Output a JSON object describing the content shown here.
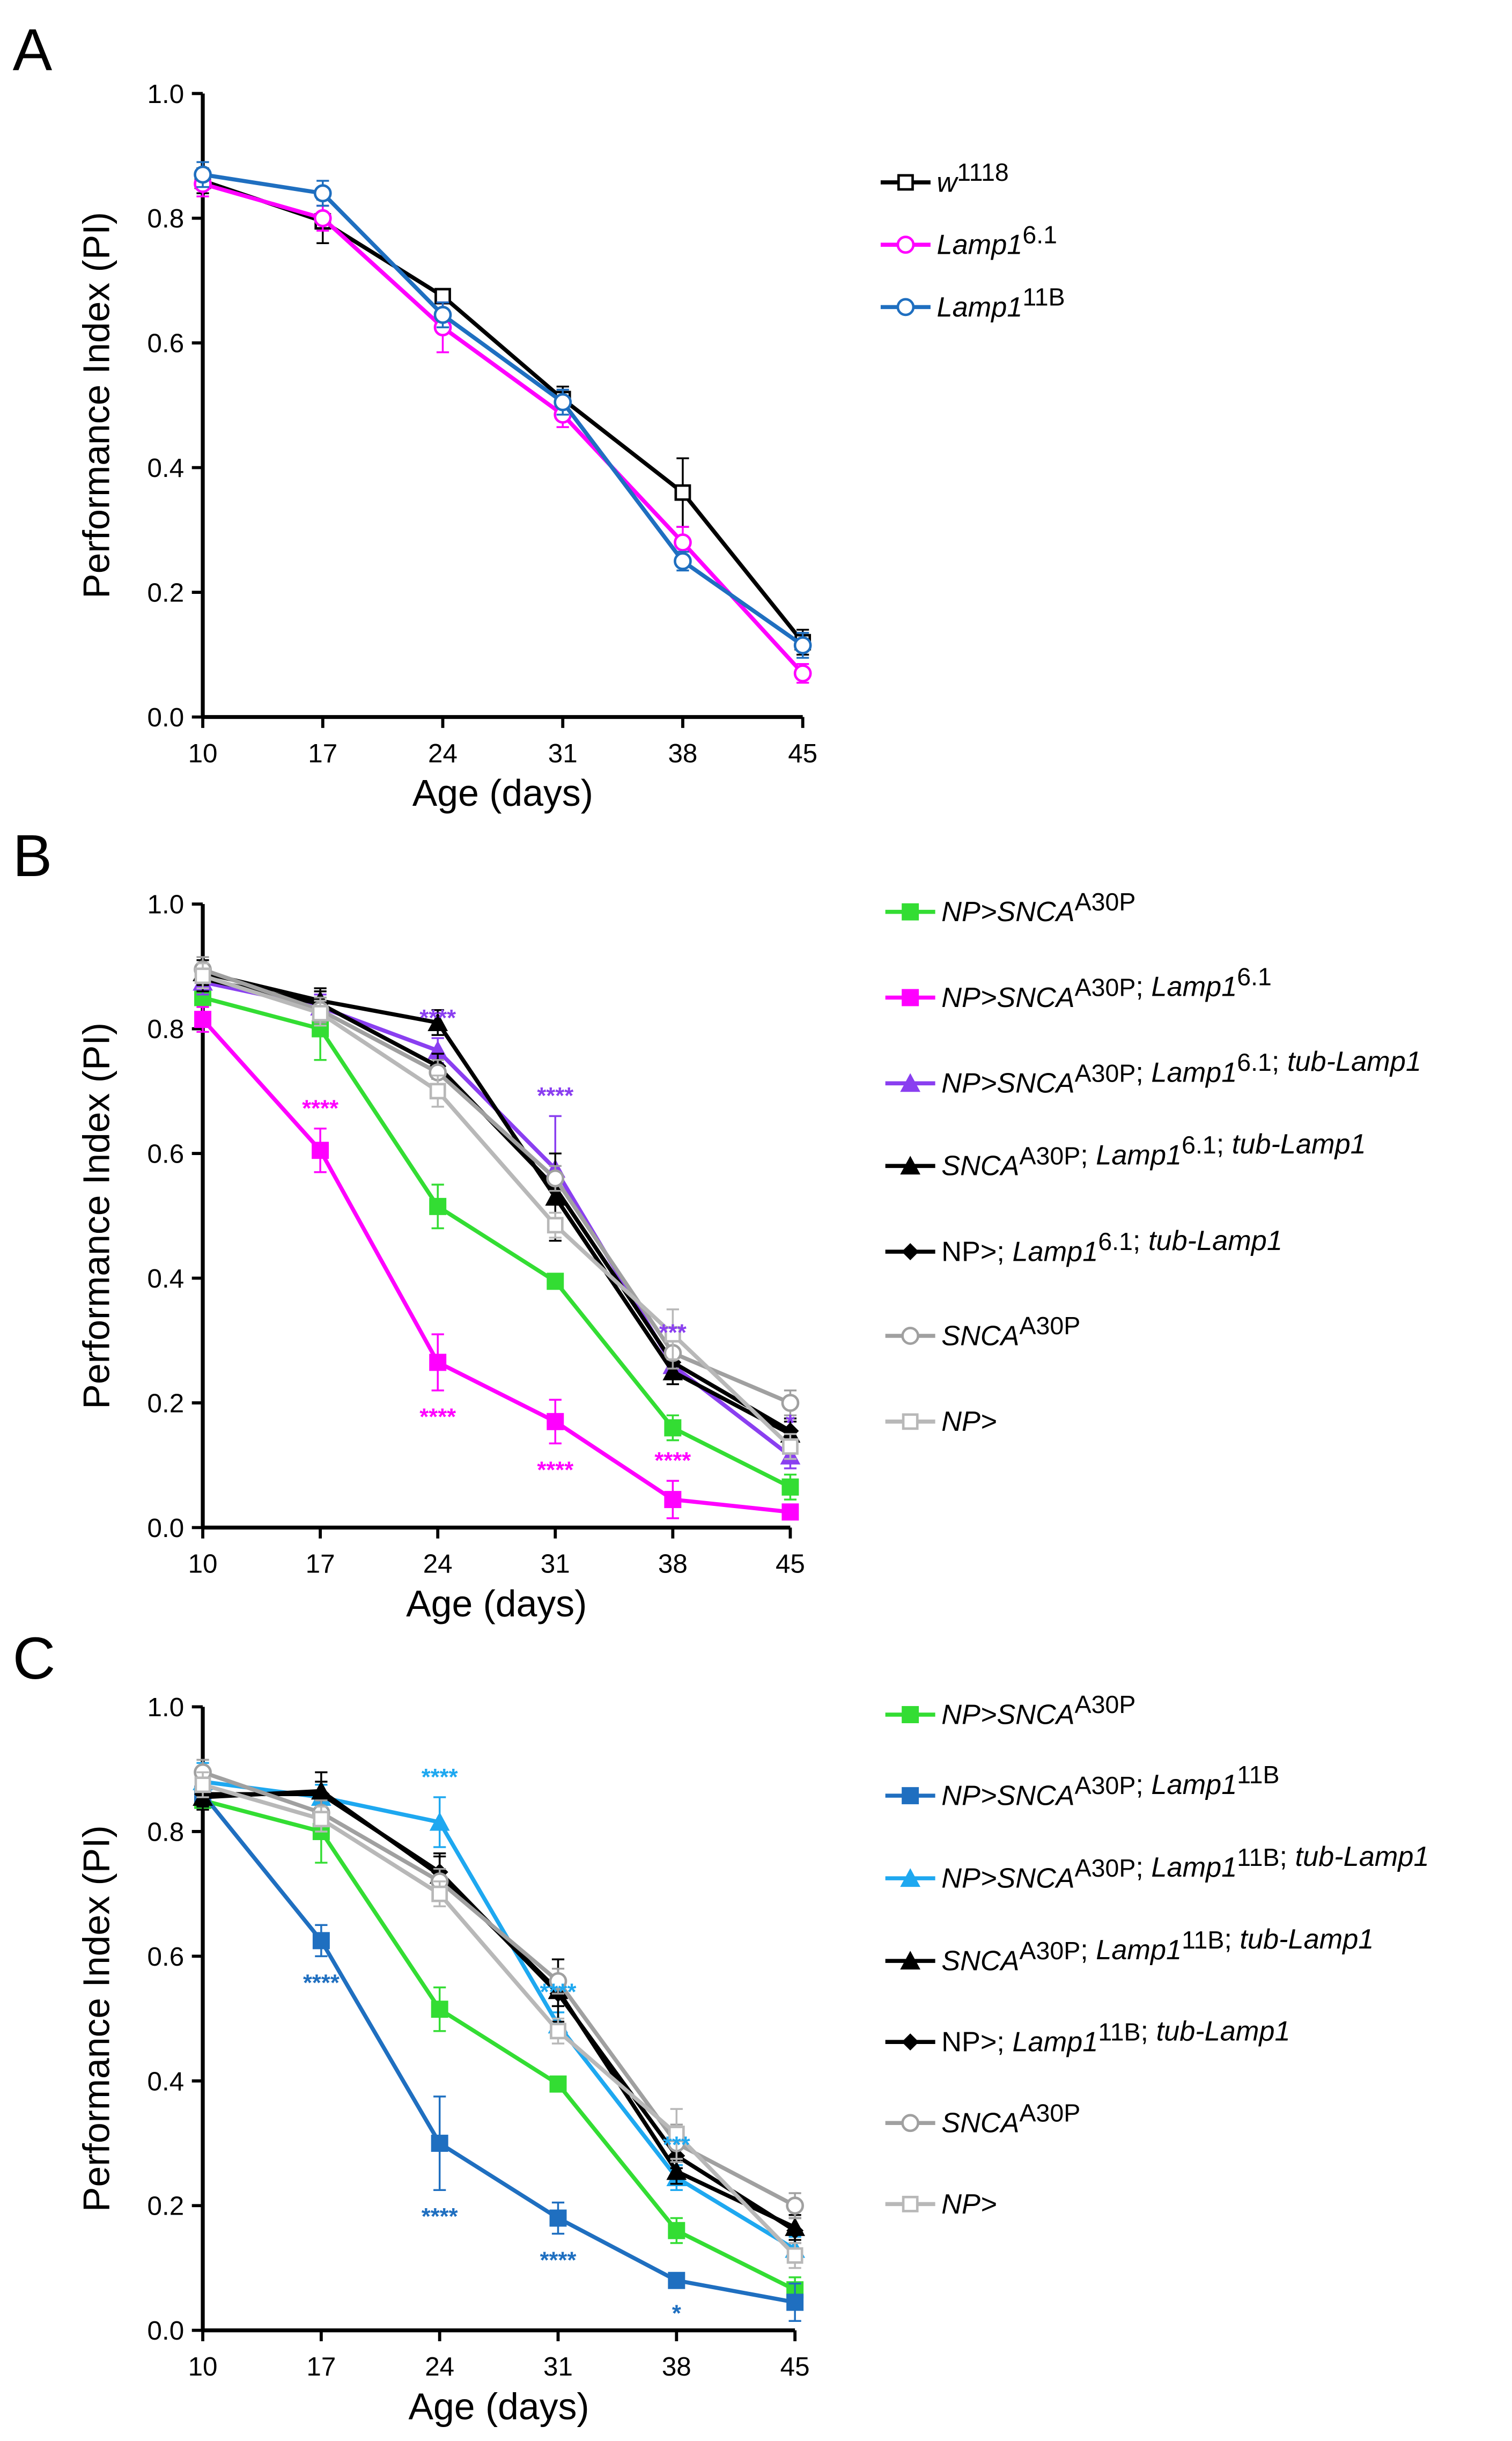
{
  "chart_data": [
    {
      "type": "line",
      "panel_label": "A",
      "xlabel": "Age (days)",
      "ylabel": "Performance Index (PI)",
      "x": [
        10,
        17,
        24,
        31,
        38,
        45
      ],
      "ylim": [
        0,
        1
      ],
      "yticks": [
        "0.0",
        "0.2",
        "0.4",
        "0.6",
        "0.8",
        "1.0"
      ],
      "legend_position": "right",
      "series": [
        {
          "label": [
            {
              "text": "w",
              "italic": true
            },
            {
              "text": "1118",
              "sup": true
            }
          ],
          "color": "#000000",
          "marker": "square-open",
          "values": [
            0.86,
            0.795,
            0.675,
            0.51,
            0.36,
            0.12
          ],
          "err": [
            0.02,
            0.035,
            0.01,
            0.02,
            0.055,
            0.02
          ]
        },
        {
          "label": [
            {
              "text": "Lamp1",
              "italic": true
            },
            {
              "text": "6.1",
              "sup": true
            }
          ],
          "color": "#ff00ff",
          "marker": "circle-open",
          "values": [
            0.855,
            0.8,
            0.625,
            0.485,
            0.28,
            0.07
          ],
          "err": [
            0.02,
            0.02,
            0.04,
            0.02,
            0.025,
            0.015
          ]
        },
        {
          "label": [
            {
              "text": "Lamp1",
              "italic": true
            },
            {
              "text": "11B",
              "sup": true
            }
          ],
          "color": "#1f6fc0",
          "marker": "circle-open",
          "values": [
            0.87,
            0.84,
            0.645,
            0.505,
            0.25,
            0.115
          ],
          "err": [
            0.02,
            0.02,
            0.02,
            0.02,
            0.015,
            0.02
          ]
        }
      ],
      "annotations": []
    },
    {
      "type": "line",
      "panel_label": "B",
      "xlabel": "Age (days)",
      "ylabel": "Performance Index (PI)",
      "x": [
        10,
        17,
        24,
        31,
        38,
        45
      ],
      "ylim": [
        0,
        1
      ],
      "yticks": [
        "0.0",
        "0.2",
        "0.4",
        "0.6",
        "0.8",
        "1.0"
      ],
      "legend_position": "right",
      "series": [
        {
          "label": [
            {
              "text": "NP>SNCA",
              "italic": true
            },
            {
              "text": "A30P",
              "sup": true
            }
          ],
          "color": "#33dd33",
          "marker": "square",
          "values": [
            0.85,
            0.8,
            0.515,
            0.395,
            0.16,
            0.065
          ],
          "err": [
            0.01,
            0.05,
            0.035,
            0.01,
            0.02,
            0.02
          ]
        },
        {
          "label": [
            {
              "text": "NP>SNCA",
              "italic": true
            },
            {
              "text": "A30P",
              "sup": true
            },
            {
              "text": "; "
            },
            {
              "text": "Lamp1",
              "italic": true
            },
            {
              "text": "6.1",
              "sup": true
            }
          ],
          "color": "#ff00ff",
          "marker": "square",
          "values": [
            0.815,
            0.605,
            0.265,
            0.17,
            0.045,
            0.025
          ],
          "err": [
            0.02,
            0.035,
            0.045,
            0.035,
            0.03,
            0.01
          ]
        },
        {
          "label": [
            {
              "text": "NP>SNCA",
              "italic": true
            },
            {
              "text": "A30P",
              "sup": true
            },
            {
              "text": "; "
            },
            {
              "text": "Lamp1",
              "italic": true
            },
            {
              "text": "6.1",
              "sup": true
            },
            {
              "text": "; "
            },
            {
              "text": "tub-Lamp1",
              "italic": true
            }
          ],
          "color": "#8a3ff0",
          "marker": "triangle",
          "values": [
            0.875,
            0.835,
            0.765,
            0.575,
            0.26,
            0.115
          ],
          "err": [
            0.02,
            0.02,
            0.02,
            0.085,
            0.02,
            0.02
          ]
        },
        {
          "label": [
            {
              "text": "SNCA",
              "italic": true
            },
            {
              "text": "A30P",
              "sup": true
            },
            {
              "text": "; "
            },
            {
              "text": "Lamp1",
              "italic": true
            },
            {
              "text": "6.1",
              "sup": true
            },
            {
              "text": "; "
            },
            {
              "text": "tub-Lamp1",
              "italic": true
            }
          ],
          "color": "#000000",
          "marker": "triangle",
          "values": [
            0.89,
            0.845,
            0.81,
            0.53,
            0.25,
            0.15
          ],
          "err": [
            0.02,
            0.02,
            0.02,
            0.07,
            0.02,
            0.02
          ]
        },
        {
          "label": [
            {
              "text": "NP>; "
            },
            {
              "text": "Lamp1",
              "italic": true
            },
            {
              "text": "6.1",
              "sup": true
            },
            {
              "text": "; "
            },
            {
              "text": "tub-Lamp1",
              "italic": true
            }
          ],
          "color": "#000000",
          "marker": "diamond",
          "values": [
            0.88,
            0.84,
            0.74,
            0.545,
            0.265,
            0.155
          ],
          "err": [
            0.02,
            0.02,
            0.02,
            0.02,
            0.02,
            0.02
          ]
        },
        {
          "label": [
            {
              "text": "SNCA",
              "italic": true
            },
            {
              "text": "A30P",
              "sup": true
            }
          ],
          "color": "#a0a0a0",
          "marker": "circle-open",
          "values": [
            0.895,
            0.83,
            0.73,
            0.56,
            0.28,
            0.2
          ],
          "err": [
            0.02,
            0.02,
            0.02,
            0.02,
            0.025,
            0.02
          ]
        },
        {
          "label": [
            {
              "text": "NP>",
              "italic": true
            }
          ],
          "color": "#b8b8b8",
          "marker": "square-open",
          "values": [
            0.885,
            0.825,
            0.7,
            0.485,
            0.31,
            0.13
          ],
          "err": [
            0.02,
            0.02,
            0.025,
            0.02,
            0.04,
            0.02
          ]
        }
      ],
      "annotations": [
        {
          "text": "****",
          "series": 2,
          "x": 24,
          "pos": "above"
        },
        {
          "text": "****",
          "series": 2,
          "x": 31,
          "pos": "above"
        },
        {
          "text": "***",
          "series": 2,
          "x": 38,
          "pos": "above"
        },
        {
          "text": "*",
          "series": 2,
          "x": 45,
          "pos": "above"
        },
        {
          "text": "****",
          "series": 1,
          "x": 17,
          "pos": "above"
        },
        {
          "text": "****",
          "series": 1,
          "x": 24,
          "pos": "below"
        },
        {
          "text": "****",
          "series": 1,
          "x": 31,
          "pos": "below"
        },
        {
          "text": "****",
          "series": 1,
          "x": 38,
          "pos": "above"
        }
      ]
    },
    {
      "type": "line",
      "panel_label": "C",
      "xlabel": "Age (days)",
      "ylabel": "Performance Index (PI)",
      "x": [
        10,
        17,
        24,
        31,
        38,
        45
      ],
      "ylim": [
        0,
        1
      ],
      "yticks": [
        "0.0",
        "0.2",
        "0.4",
        "0.6",
        "0.8",
        "1.0"
      ],
      "legend_position": "right",
      "series": [
        {
          "label": [
            {
              "text": "NP>SNCA",
              "italic": true
            },
            {
              "text": "A30P",
              "sup": true
            }
          ],
          "color": "#33dd33",
          "marker": "square",
          "values": [
            0.85,
            0.8,
            0.515,
            0.395,
            0.16,
            0.065
          ],
          "err": [
            0.01,
            0.05,
            0.035,
            0.01,
            0.02,
            0.02
          ]
        },
        {
          "label": [
            {
              "text": "NP>SNCA",
              "italic": true
            },
            {
              "text": "A30P",
              "sup": true
            },
            {
              "text": "; "
            },
            {
              "text": "Lamp1",
              "italic": true
            },
            {
              "text": "11B",
              "sup": true
            }
          ],
          "color": "#1f6fc0",
          "marker": "square",
          "values": [
            0.86,
            0.625,
            0.3,
            0.18,
            0.08,
            0.045
          ],
          "err": [
            0.02,
            0.025,
            0.075,
            0.025,
            0.01,
            0.03
          ]
        },
        {
          "label": [
            {
              "text": "NP>SNCA",
              "italic": true
            },
            {
              "text": "A30P",
              "sup": true
            },
            {
              "text": "; "
            },
            {
              "text": "Lamp1",
              "italic": true
            },
            {
              "text": "11B",
              "sup": true
            },
            {
              "text": "; "
            },
            {
              "text": "tub-Lamp1",
              "italic": true
            }
          ],
          "color": "#1ea8f0",
          "marker": "triangle",
          "values": [
            0.88,
            0.855,
            0.815,
            0.49,
            0.245,
            0.13
          ],
          "err": [
            0.03,
            0.02,
            0.04,
            0.02,
            0.02,
            0.02
          ]
        },
        {
          "label": [
            {
              "text": "SNCA",
              "italic": true
            },
            {
              "text": "A30P",
              "sup": true
            },
            {
              "text": "; "
            },
            {
              "text": "Lamp1",
              "italic": true
            },
            {
              "text": "11B",
              "sup": true
            },
            {
              "text": "; "
            },
            {
              "text": "tub-Lamp1",
              "italic": true
            }
          ],
          "color": "#000000",
          "marker": "triangle",
          "values": [
            0.855,
            0.865,
            0.73,
            0.545,
            0.255,
            0.165
          ],
          "err": [
            0.02,
            0.03,
            0.03,
            0.05,
            0.02,
            0.02
          ]
        },
        {
          "label": [
            {
              "text": "NP>; "
            },
            {
              "text": "Lamp1",
              "italic": true
            },
            {
              "text": "11B",
              "sup": true
            },
            {
              "text": "; "
            },
            {
              "text": "tub-Lamp1",
              "italic": true
            }
          ],
          "color": "#000000",
          "marker": "diamond",
          "values": [
            0.86,
            0.86,
            0.735,
            0.54,
            0.28,
            0.16
          ],
          "err": [
            0.02,
            0.02,
            0.03,
            0.02,
            0.02,
            0.02
          ]
        },
        {
          "label": [
            {
              "text": "SNCA",
              "italic": true
            },
            {
              "text": "A30P",
              "sup": true
            }
          ],
          "color": "#a0a0a0",
          "marker": "circle-open",
          "values": [
            0.895,
            0.83,
            0.72,
            0.56,
            0.3,
            0.2
          ],
          "err": [
            0.02,
            0.02,
            0.02,
            0.02,
            0.03,
            0.02
          ]
        },
        {
          "label": [
            {
              "text": "NP>",
              "italic": true
            }
          ],
          "color": "#b8b8b8",
          "marker": "square-open",
          "values": [
            0.875,
            0.82,
            0.7,
            0.48,
            0.315,
            0.12
          ],
          "err": [
            0.02,
            0.02,
            0.02,
            0.02,
            0.04,
            0.02
          ]
        }
      ],
      "annotations": [
        {
          "text": "****",
          "series": 2,
          "x": 24,
          "pos": "above"
        },
        {
          "text": "****",
          "series": 2,
          "x": 31,
          "pos": "above"
        },
        {
          "text": "***",
          "series": 2,
          "x": 38,
          "pos": "above"
        },
        {
          "text": "****",
          "series": 1,
          "x": 17,
          "pos": "below"
        },
        {
          "text": "****",
          "series": 1,
          "x": 24,
          "pos": "below"
        },
        {
          "text": "****",
          "series": 1,
          "x": 31,
          "pos": "below"
        },
        {
          "text": "*",
          "series": 1,
          "x": 38,
          "pos": "below"
        }
      ]
    }
  ]
}
